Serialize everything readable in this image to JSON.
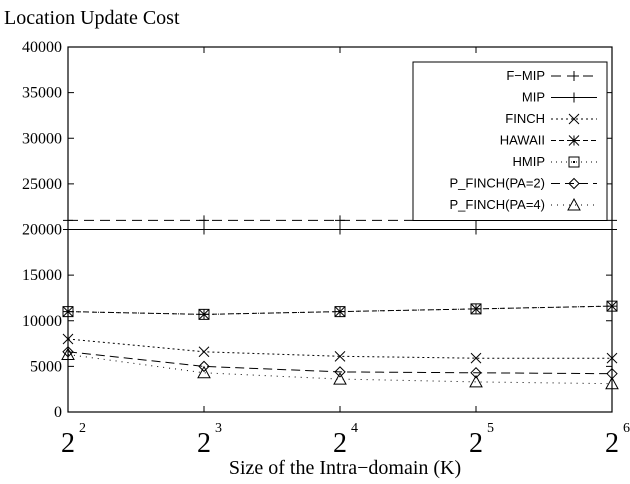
{
  "chart_data": {
    "type": "line",
    "title": "Location Update Cost",
    "xlabel": "Size of the Intra−domain (K)",
    "ylabel": "",
    "x_base": "2",
    "x_exponents": [
      "2",
      "3",
      "4",
      "5",
      "6"
    ],
    "x": [
      4,
      8,
      16,
      32,
      64
    ],
    "ylim": [
      0,
      40000
    ],
    "yticks": [
      "0",
      "5000",
      "10000",
      "15000",
      "20000",
      "25000",
      "30000",
      "35000",
      "40000"
    ],
    "grid": false,
    "legend_position": "top-right",
    "series": [
      {
        "name": "F−MIP",
        "values": [
          21000,
          21000,
          21000,
          21000,
          21000
        ],
        "color": "#000000",
        "dash": "10,6",
        "marker": "plus"
      },
      {
        "name": "MIP",
        "values": [
          20000,
          20000,
          20000,
          20000,
          20000
        ],
        "color": "#000000",
        "dash": "",
        "marker": "plus"
      },
      {
        "name": "FINCH",
        "values": [
          8000,
          6600,
          6100,
          5900,
          5900
        ],
        "color": "#000000",
        "dash": "2,3",
        "marker": "x"
      },
      {
        "name": "HAWAII",
        "values": [
          11000,
          10700,
          11000,
          11300,
          11600
        ],
        "color": "#000000",
        "dash": "5,3",
        "marker": "star"
      },
      {
        "name": "HMIP",
        "values": [
          11000,
          10700,
          11000,
          11300,
          11600
        ],
        "color": "#000000",
        "dash": "1,4",
        "marker": "square"
      },
      {
        "name": "P_FINCH(PA=2)",
        "values": [
          6600,
          5000,
          4400,
          4300,
          4200
        ],
        "color": "#000000",
        "dash": "9,5",
        "marker": "diamond"
      },
      {
        "name": "P_FINCH(PA=4)",
        "values": [
          6300,
          4300,
          3600,
          3300,
          3100
        ],
        "color": "#000000",
        "dash": "1,5",
        "marker": "triangle"
      }
    ]
  }
}
